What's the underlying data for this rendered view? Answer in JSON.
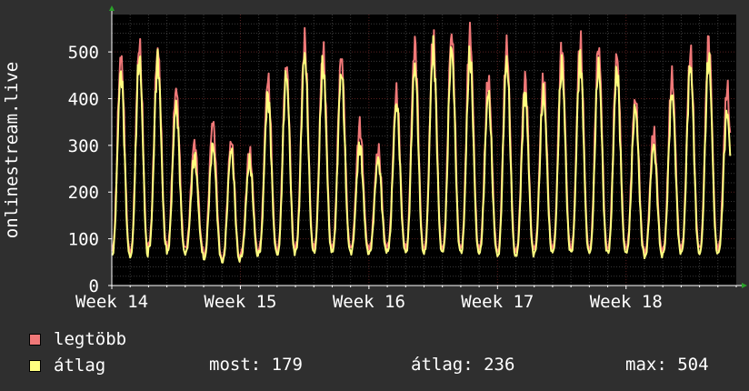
{
  "chart_data": {
    "type": "line",
    "ylabel": "onlinestream.live",
    "ylim": [
      0,
      580
    ],
    "yticks": [
      0,
      100,
      200,
      300,
      400,
      500
    ],
    "xlim": [
      0,
      34
    ],
    "xticks": [
      {
        "label": "Week 14",
        "x": 0
      },
      {
        "label": "Week 15",
        "x": 7
      },
      {
        "label": "Week 16",
        "x": 14
      },
      {
        "label": "Week 17",
        "x": 21
      },
      {
        "label": "Week 18",
        "x": 28
      }
    ],
    "grid": true,
    "series": [
      {
        "name": "legtöbb",
        "color": "#f07878",
        "peaks": [
          490,
          512,
          505,
          420,
          305,
          350,
          310,
          285,
          440,
          470,
          520,
          500,
          490,
          340,
          290,
          410,
          515,
          525,
          538,
          535,
          440,
          510,
          440,
          440,
          505,
          520,
          510,
          490,
          400,
          325,
          445,
          495,
          520,
          420
        ],
        "troughs": [
          75,
          70,
          90,
          80,
          80,
          60,
          55,
          70,
          80,
          75,
          85,
          80,
          85,
          80,
          80,
          85,
          80,
          80,
          82,
          80,
          80,
          72,
          75,
          80,
          82,
          80,
          80,
          80,
          80,
          70,
          80,
          82,
          80,
          80
        ]
      },
      {
        "name": "átlag",
        "color": "#ffff80",
        "peaks": [
          455,
          485,
          480,
          385,
          275,
          300,
          290,
          265,
          405,
          450,
          495,
          470,
          455,
          300,
          270,
          390,
          470,
          505,
          505,
          490,
          410,
          480,
          410,
          410,
          470,
          485,
          470,
          460,
          380,
          300,
          410,
          470,
          485,
          370
        ],
        "troughs": [
          65,
          62,
          80,
          70,
          70,
          55,
          50,
          60,
          70,
          65,
          75,
          70,
          75,
          70,
          70,
          75,
          70,
          70,
          72,
          70,
          70,
          62,
          65,
          70,
          72,
          70,
          70,
          70,
          70,
          60,
          70,
          72,
          70,
          70
        ]
      }
    ]
  },
  "legend": {
    "max_label": "legtöbb",
    "avg_label": "átlag",
    "max_color": "#f07878",
    "avg_color": "#ffff80"
  },
  "stats": {
    "most": "most: 179",
    "atlag": "átlag: 236",
    "max": "max: 504"
  }
}
